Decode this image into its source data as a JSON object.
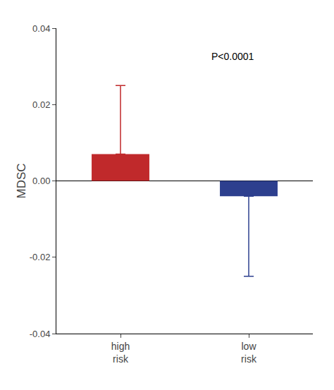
{
  "chart_data": {
    "type": "bar",
    "categories": [
      "high\nrisk",
      "low\nrisk"
    ],
    "values": [
      0.007,
      -0.004
    ],
    "colors": [
      "#c0292b",
      "#2d3f8e"
    ],
    "error_plus": [
      0.018,
      0.0
    ],
    "error_minus": [
      0.0,
      0.021
    ],
    "ylim": [
      -0.04,
      0.04
    ],
    "yticks": [
      -0.04,
      -0.02,
      {
        "value": 0,
        "label": "0.00"
      },
      0.02,
      0.04
    ],
    "ylabel": "MDSC",
    "annotation": "P<0.0001",
    "grid": false
  }
}
